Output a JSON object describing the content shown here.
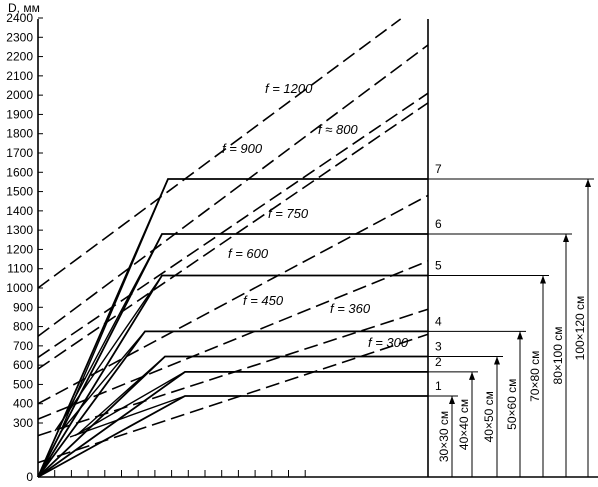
{
  "chart_data": {
    "type": "line",
    "y_axis": {
      "label": "D, мм",
      "ticks": [
        0,
        300,
        400,
        500,
        600,
        700,
        800,
        900,
        1000,
        1100,
        1200,
        1300,
        1400,
        1500,
        1600,
        1700,
        1800,
        1900,
        2000,
        2100,
        2200,
        2300,
        2400
      ],
      "min": 0,
      "max": 2400,
      "grid": false
    },
    "x_axis": {
      "label": "",
      "tick_marks": 16,
      "tick_labels": false
    },
    "dashed_lines": [
      {
        "label": "f = 1200",
        "start": 1000,
        "end": 2500
      },
      {
        "label": "f = 900",
        "start": 750,
        "end": 2260
      },
      {
        "label": "f ≈ 800",
        "start": 640,
        "end": 2010
      },
      {
        "label": "f = 750",
        "start": 580,
        "end": 1960
      },
      {
        "label": "f = 600",
        "start": 400,
        "end": 1480
      },
      {
        "label": "f = 450",
        "start": 320,
        "end": 1140
      },
      {
        "label": "f = 360",
        "start": 230,
        "end": 890
      },
      {
        "label": "f = 300",
        "start": 80,
        "end": 760
      }
    ],
    "curves": [
      {
        "number": "1",
        "plateau": 440,
        "section": "30×30 см"
      },
      {
        "number": "2",
        "plateau": 565,
        "section": "40×40 см"
      },
      {
        "number": "3",
        "plateau": 645,
        "section": "40×50 см"
      },
      {
        "number": "4",
        "plateau": 775,
        "section": "50×60 см"
      },
      {
        "number": "5",
        "plateau": 1065,
        "section": "70×80 см"
      },
      {
        "number": "6",
        "plateau": 1280,
        "section": "80×100 см"
      },
      {
        "number": "7",
        "plateau": 1565,
        "section": "100×120 см"
      }
    ]
  }
}
